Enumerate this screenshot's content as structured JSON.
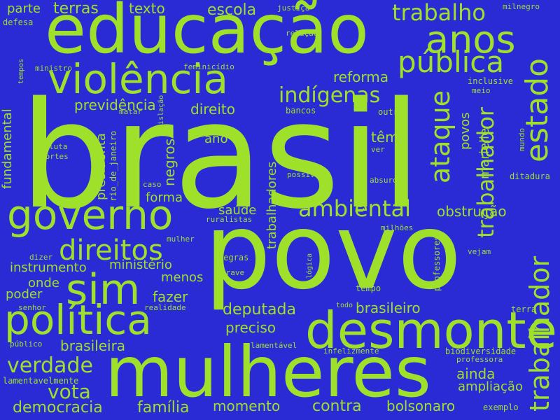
{
  "cloud": {
    "background_color": "#2b2bd6",
    "word_color": "#9ee02a",
    "words": [
      "brasil",
      "povo",
      "mulheres",
      "educação",
      "desmonte",
      "violência",
      "governo",
      "política",
      "sim",
      "anos",
      "estado",
      "pública",
      "trabalhador",
      "ataque",
      "direitos",
      "ambiental",
      "trabalho",
      "indígenas",
      "verdade",
      "vota",
      "democracia",
      "família",
      "momento",
      "contra",
      "bolsonaro",
      "deputada",
      "preciso",
      "brasileiro",
      "brasileira",
      "escola",
      "reforma",
      "previdência",
      "direito",
      "terras",
      "texto",
      "parte",
      "obstrução",
      "trabalhador",
      "têm",
      "ano",
      "saúde",
      "forma",
      "fazer",
      "menos",
      "ministério",
      "instrumento",
      "onde",
      "poder",
      "ainda",
      "ampliação",
      "presidenta",
      "negros",
      "trabalhadores",
      "territórios",
      "povos",
      "marielle",
      "fundamental",
      "rio_de_janeiro",
      "professores",
      "biodiversidade",
      "professora",
      "ditadura",
      "inclusive",
      "meio",
      "exemplo",
      "terra",
      "vejam",
      "milnegro",
      "justiça",
      "relação",
      "defesa",
      "ministro",
      "tempos",
      "feminicídio",
      "matar",
      "legislação",
      "bancos",
      "outro",
      "ver",
      "mundo",
      "luta",
      "cortes",
      "caso",
      "possível",
      "absurdo",
      "ruralistas",
      "milhões",
      "mulher",
      "dizer",
      "negras",
      "grave",
      "lógica",
      "tempo",
      "senhor",
      "realidade",
      "todo",
      "público",
      "lamentável",
      "infelizmente",
      "lamentavelmente"
    ]
  }
}
